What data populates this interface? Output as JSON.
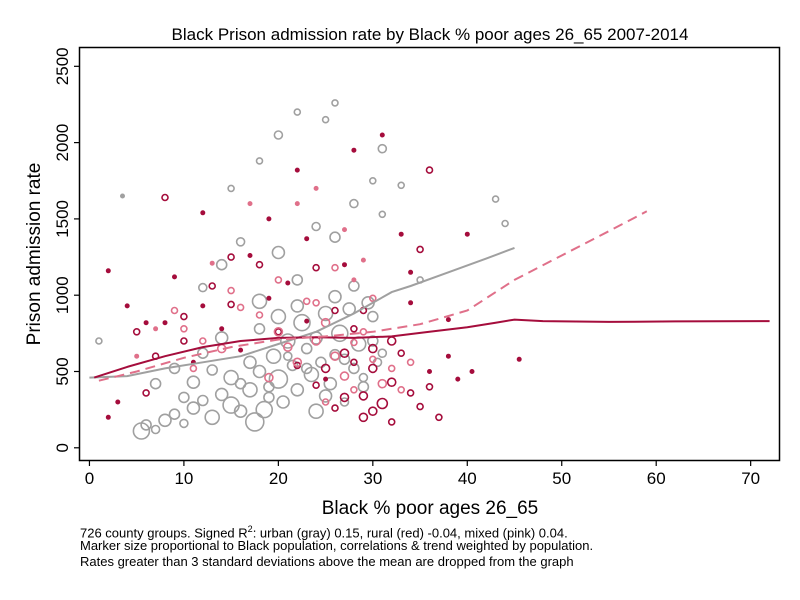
{
  "chart_data": {
    "type": "scatter",
    "title": "Black Prison admission rate by Black % poor ages 26_65 2007-2014",
    "xlabel": "Black % poor ages 26_65",
    "ylabel": "Prison admission rate",
    "xlim": [
      -1,
      73
    ],
    "ylim": [
      -80,
      2620
    ],
    "xticks": [
      0,
      10,
      20,
      30,
      40,
      50,
      60,
      70
    ],
    "yticks": [
      0,
      500,
      1000,
      1500,
      2000,
      2500
    ],
    "grid": false,
    "colors": {
      "urban": "#a0a0a0",
      "rural": "#a50d3c",
      "mixed": "#e0708a"
    },
    "notes": {
      "line1_pre": "726 county groups. Signed R",
      "line1_sup": "2",
      "line1_post": ": urban (gray) 0.15, rural (red) -0.04, mixed (pink) 0.04.",
      "line2": "Marker size proportional to Black population, correlations & trend weighted by population.",
      "line3": "Rates greater than 3 standard deviations above the mean are dropped from the graph"
    },
    "trend_lines": [
      {
        "group": "urban",
        "style": "solid",
        "points": [
          [
            0,
            460
          ],
          [
            4,
            470
          ],
          [
            8,
            520
          ],
          [
            12,
            560
          ],
          [
            16,
            600
          ],
          [
            20,
            680
          ],
          [
            24,
            760
          ],
          [
            28,
            880
          ],
          [
            30,
            950
          ],
          [
            32,
            1020
          ],
          [
            34,
            1060
          ],
          [
            38,
            1150
          ],
          [
            42,
            1240
          ],
          [
            45,
            1310
          ]
        ]
      },
      {
        "group": "rural",
        "style": "solid",
        "points": [
          [
            0.5,
            460
          ],
          [
            4,
            530
          ],
          [
            8,
            600
          ],
          [
            12,
            660
          ],
          [
            16,
            700
          ],
          [
            20,
            720
          ],
          [
            24,
            725
          ],
          [
            28,
            720
          ],
          [
            32,
            730
          ],
          [
            36,
            760
          ],
          [
            40,
            790
          ],
          [
            43,
            820
          ],
          [
            45,
            840
          ],
          [
            48,
            830
          ],
          [
            55,
            825
          ],
          [
            62,
            828
          ],
          [
            72,
            830
          ]
        ]
      },
      {
        "group": "mixed",
        "style": "dashed",
        "points": [
          [
            1,
            440
          ],
          [
            5,
            500
          ],
          [
            10,
            590
          ],
          [
            15,
            660
          ],
          [
            20,
            710
          ],
          [
            25,
            730
          ],
          [
            30,
            760
          ],
          [
            35,
            810
          ],
          [
            40,
            900
          ],
          [
            45,
            1100
          ],
          [
            50,
            1260
          ],
          [
            55,
            1420
          ],
          [
            59,
            1550
          ]
        ]
      }
    ],
    "series": [
      {
        "name": "urban",
        "points": [
          [
            5.5,
            110,
            8
          ],
          [
            6,
            150,
            5
          ],
          [
            7,
            120,
            4
          ],
          [
            8,
            180,
            6
          ],
          [
            9,
            220,
            5
          ],
          [
            10,
            160,
            4
          ],
          [
            11,
            260,
            6
          ],
          [
            12,
            310,
            5
          ],
          [
            13,
            200,
            7
          ],
          [
            14,
            350,
            6
          ],
          [
            15,
            280,
            8
          ],
          [
            16,
            420,
            5
          ],
          [
            17,
            380,
            7
          ],
          [
            17.5,
            170,
            9
          ],
          [
            18,
            500,
            6
          ],
          [
            18.5,
            250,
            8
          ],
          [
            19,
            330,
            5
          ],
          [
            19.5,
            600,
            7
          ],
          [
            20,
            450,
            9
          ],
          [
            20.5,
            300,
            6
          ],
          [
            21,
            700,
            7
          ],
          [
            21.5,
            540,
            5
          ],
          [
            22,
            380,
            6
          ],
          [
            22.5,
            820,
            8
          ],
          [
            23,
            650,
            5
          ],
          [
            23.5,
            480,
            7
          ],
          [
            24,
            720,
            6
          ],
          [
            24.5,
            560,
            5
          ],
          [
            25,
            880,
            7
          ],
          [
            25.5,
            420,
            6
          ],
          [
            26,
            610,
            5
          ],
          [
            26.5,
            750,
            8
          ],
          [
            27,
            300,
            4
          ],
          [
            27.5,
            910,
            6
          ],
          [
            28,
            520,
            5
          ],
          [
            28.5,
            680,
            7
          ],
          [
            29,
            400,
            5
          ],
          [
            29.5,
            950,
            6
          ],
          [
            30,
            700,
            5
          ],
          [
            30.5,
            560,
            4
          ],
          [
            31,
            620,
            4
          ],
          [
            12,
            1050,
            4
          ],
          [
            14,
            1200,
            5
          ],
          [
            16,
            1350,
            4
          ],
          [
            18,
            960,
            7
          ],
          [
            20,
            1280,
            6
          ],
          [
            22,
            1100,
            5
          ],
          [
            24,
            1450,
            4
          ],
          [
            26,
            1380,
            5
          ],
          [
            28,
            1600,
            4
          ],
          [
            30,
            1750,
            3
          ],
          [
            15,
            1700,
            3
          ],
          [
            18,
            1880,
            3
          ],
          [
            20,
            2050,
            4
          ],
          [
            22,
            2200,
            3
          ],
          [
            25,
            2150,
            3
          ],
          [
            26,
            2260,
            3
          ],
          [
            31,
            1960,
            4
          ],
          [
            31,
            1530,
            3
          ],
          [
            33,
            1720,
            3
          ],
          [
            3.5,
            1650,
            2
          ],
          [
            1,
            700,
            3
          ],
          [
            7,
            420,
            5
          ],
          [
            9,
            520,
            5
          ],
          [
            11,
            430,
            6
          ],
          [
            13,
            510,
            5
          ],
          [
            15,
            460,
            7
          ],
          [
            17,
            560,
            6
          ],
          [
            19,
            400,
            5
          ],
          [
            21,
            600,
            4
          ],
          [
            23,
            520,
            5
          ],
          [
            25,
            340,
            6
          ],
          [
            27,
            580,
            5
          ],
          [
            29,
            460,
            4
          ],
          [
            24,
            240,
            7
          ],
          [
            16,
            240,
            6
          ],
          [
            10,
            330,
            5
          ],
          [
            12,
            620,
            5
          ],
          [
            14,
            720,
            6
          ],
          [
            18,
            780,
            5
          ],
          [
            20,
            860,
            7
          ],
          [
            22,
            930,
            6
          ],
          [
            26,
            990,
            6
          ],
          [
            28,
            1060,
            5
          ],
          [
            30,
            860,
            5
          ],
          [
            44,
            1470,
            3
          ],
          [
            43,
            1630,
            3
          ],
          [
            35,
            1100,
            3
          ]
        ]
      },
      {
        "name": "rural",
        "points": [
          [
            8,
            1640,
            3
          ],
          [
            2,
            1160,
            2
          ],
          [
            4,
            930,
            2
          ],
          [
            5,
            760,
            3
          ],
          [
            6,
            820,
            2
          ],
          [
            7,
            600,
            3
          ],
          [
            9,
            1120,
            2
          ],
          [
            10,
            860,
            3
          ],
          [
            12,
            930,
            2
          ],
          [
            13,
            1060,
            3
          ],
          [
            14,
            780,
            2
          ],
          [
            15,
            1250,
            3
          ],
          [
            16,
            640,
            2
          ],
          [
            18,
            1200,
            3
          ],
          [
            19,
            980,
            2
          ],
          [
            20,
            760,
            3
          ],
          [
            21,
            1080,
            2
          ],
          [
            22,
            540,
            3
          ],
          [
            23,
            830,
            2
          ],
          [
            24,
            1180,
            3
          ],
          [
            25,
            450,
            2
          ],
          [
            26,
            900,
            3
          ],
          [
            27,
            620,
            4
          ],
          [
            28,
            780,
            3
          ],
          [
            29,
            340,
            4
          ],
          [
            30,
            520,
            4
          ],
          [
            31,
            290,
            5
          ],
          [
            32,
            430,
            4
          ],
          [
            33,
            620,
            3
          ],
          [
            34,
            360,
            3
          ],
          [
            35,
            270,
            3
          ],
          [
            36,
            500,
            2
          ],
          [
            37,
            200,
            3
          ],
          [
            38,
            600,
            2
          ],
          [
            39,
            450,
            2
          ],
          [
            45.5,
            580,
            2
          ],
          [
            40.5,
            500,
            2
          ],
          [
            32,
            170,
            3
          ],
          [
            29,
            200,
            4
          ],
          [
            30,
            240,
            4
          ],
          [
            27,
            330,
            4
          ],
          [
            28,
            560,
            3
          ],
          [
            26,
            260,
            3
          ],
          [
            25,
            520,
            4
          ],
          [
            24,
            410,
            3
          ],
          [
            31,
            2050,
            2
          ],
          [
            28,
            1950,
            2
          ],
          [
            22,
            1820,
            2
          ],
          [
            36,
            1820,
            3
          ],
          [
            35,
            1300,
            3
          ],
          [
            40,
            1400,
            2
          ],
          [
            34,
            1150,
            2
          ],
          [
            33,
            1400,
            2
          ],
          [
            34,
            950,
            2
          ],
          [
            38,
            840,
            2
          ],
          [
            36,
            400,
            3
          ],
          [
            32,
            700,
            4
          ],
          [
            30,
            650,
            4
          ],
          [
            29,
            900,
            3
          ],
          [
            27,
            1200,
            2
          ],
          [
            23,
            1370,
            2
          ],
          [
            19,
            1500,
            2
          ],
          [
            17,
            1260,
            2
          ],
          [
            12,
            1540,
            2
          ],
          [
            15,
            940,
            3
          ],
          [
            10,
            700,
            3
          ],
          [
            8,
            820,
            2
          ],
          [
            11,
            560,
            2
          ],
          [
            6,
            360,
            3
          ],
          [
            3,
            300,
            2
          ],
          [
            2,
            200,
            2
          ]
        ]
      },
      {
        "name": "mixed",
        "points": [
          [
            9,
            900,
            3
          ],
          [
            10,
            780,
            3
          ],
          [
            12,
            700,
            3
          ],
          [
            14,
            650,
            4
          ],
          [
            15,
            1030,
            3
          ],
          [
            16,
            920,
            3
          ],
          [
            18,
            870,
            3
          ],
          [
            20,
            760,
            4
          ],
          [
            21,
            660,
            4
          ],
          [
            22,
            560,
            4
          ],
          [
            23,
            960,
            3
          ],
          [
            24,
            700,
            4
          ],
          [
            25,
            820,
            4
          ],
          [
            26,
            600,
            4
          ],
          [
            27,
            470,
            4
          ],
          [
            28,
            690,
            3
          ],
          [
            29,
            760,
            3
          ],
          [
            30,
            580,
            3
          ],
          [
            31,
            420,
            4
          ],
          [
            32,
            520,
            3
          ],
          [
            33,
            380,
            3
          ],
          [
            34,
            560,
            3
          ],
          [
            27,
            1430,
            2
          ],
          [
            28,
            1100,
            2
          ],
          [
            29,
            1230,
            2
          ],
          [
            30,
            980,
            3
          ],
          [
            20,
            1100,
            3
          ],
          [
            24,
            950,
            3
          ],
          [
            26,
            1180,
            3
          ],
          [
            22,
            1600,
            2
          ],
          [
            24,
            1700,
            2
          ],
          [
            17,
            1600,
            2
          ],
          [
            13,
            1210,
            2
          ],
          [
            7,
            780,
            2
          ],
          [
            5,
            600,
            2
          ],
          [
            11,
            520,
            3
          ],
          [
            19,
            460,
            4
          ],
          [
            25,
            300,
            3
          ],
          [
            28,
            380,
            3
          ]
        ]
      }
    ]
  }
}
